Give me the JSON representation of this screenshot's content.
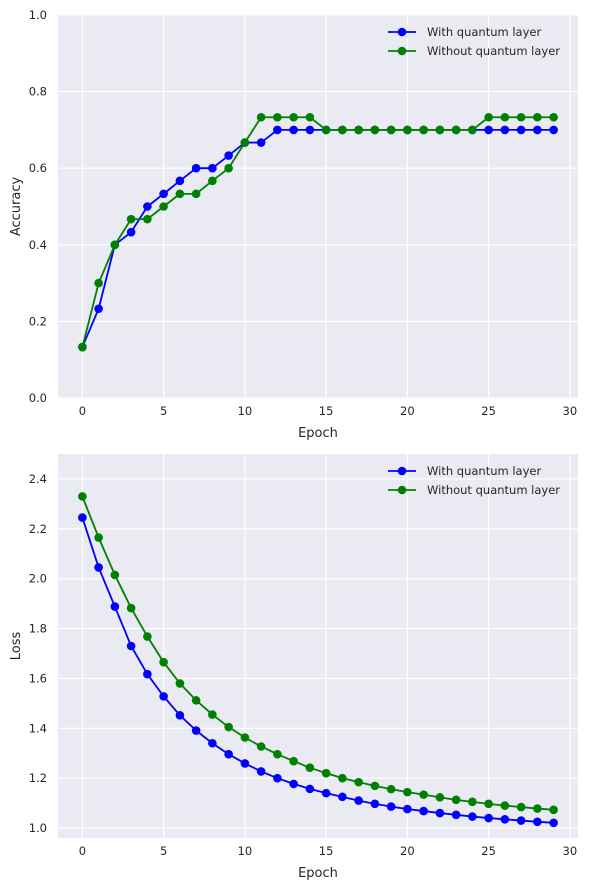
{
  "chart_data": [
    {
      "type": "line",
      "xlabel": "Epoch",
      "ylabel": "Accuracy",
      "xlim": [
        -1.5,
        30.5
      ],
      "ylim": [
        0,
        1.0
      ],
      "xticks": [
        0,
        5,
        10,
        15,
        20,
        25,
        30
      ],
      "yticks": [
        0.0,
        0.2,
        0.4,
        0.6,
        0.8,
        1.0
      ],
      "ytick_labels": [
        "0.0",
        "0.2",
        "0.4",
        "0.6",
        "0.8",
        "1.0"
      ],
      "grid": true,
      "legend_position": "top-right",
      "x": [
        0,
        1,
        2,
        3,
        4,
        5,
        6,
        7,
        8,
        9,
        10,
        11,
        12,
        13,
        14,
        15,
        16,
        17,
        18,
        19,
        20,
        21,
        22,
        23,
        24,
        25,
        26,
        27,
        28,
        29
      ],
      "series": [
        {
          "name": "With quantum layer",
          "color": "#0000ff",
          "values": [
            0.133,
            0.233,
            0.4,
            0.433,
            0.5,
            0.533,
            0.567,
            0.6,
            0.6,
            0.633,
            0.667,
            0.667,
            0.7,
            0.7,
            0.7,
            0.7,
            0.7,
            0.7,
            0.7,
            0.7,
            0.7,
            0.7,
            0.7,
            0.7,
            0.7,
            0.7,
            0.7,
            0.7,
            0.7,
            0.7
          ]
        },
        {
          "name": "Without quantum layer",
          "color": "#008000",
          "values": [
            0.133,
            0.3,
            0.4,
            0.467,
            0.467,
            0.5,
            0.533,
            0.533,
            0.567,
            0.6,
            0.667,
            0.733,
            0.733,
            0.733,
            0.733,
            0.7,
            0.7,
            0.7,
            0.7,
            0.7,
            0.7,
            0.7,
            0.7,
            0.7,
            0.7,
            0.733,
            0.733,
            0.733,
            0.733,
            0.733
          ]
        }
      ]
    },
    {
      "type": "line",
      "xlabel": "Epoch",
      "ylabel": "Loss",
      "xlim": [
        -1.5,
        30.5
      ],
      "ylim": [
        0.96,
        2.5
      ],
      "xticks": [
        0,
        5,
        10,
        15,
        20,
        25,
        30
      ],
      "yticks": [
        1.0,
        1.2,
        1.4,
        1.6,
        1.8,
        2.0,
        2.2,
        2.4
      ],
      "ytick_labels": [
        "1.0",
        "1.2",
        "1.4",
        "1.6",
        "1.8",
        "2.0",
        "2.2",
        "2.4"
      ],
      "grid": true,
      "legend_position": "top-right",
      "x": [
        0,
        1,
        2,
        3,
        4,
        5,
        6,
        7,
        8,
        9,
        10,
        11,
        12,
        13,
        14,
        15,
        16,
        17,
        18,
        19,
        20,
        21,
        22,
        23,
        24,
        25,
        26,
        27,
        28,
        29
      ],
      "series": [
        {
          "name": "With quantum layer",
          "color": "#0000ff",
          "values": [
            2.245,
            2.045,
            1.888,
            1.73,
            1.617,
            1.528,
            1.452,
            1.391,
            1.34,
            1.296,
            1.259,
            1.227,
            1.2,
            1.177,
            1.157,
            1.14,
            1.125,
            1.11,
            1.097,
            1.086,
            1.076,
            1.068,
            1.06,
            1.053,
            1.046,
            1.04,
            1.035,
            1.03,
            1.025,
            1.021
          ]
        },
        {
          "name": "Without quantum layer",
          "color": "#008000",
          "values": [
            2.33,
            2.165,
            2.015,
            1.882,
            1.768,
            1.665,
            1.58,
            1.512,
            1.455,
            1.405,
            1.363,
            1.327,
            1.296,
            1.268,
            1.242,
            1.22,
            1.2,
            1.184,
            1.169,
            1.156,
            1.144,
            1.134,
            1.123,
            1.113,
            1.105,
            1.097,
            1.09,
            1.084,
            1.078,
            1.073
          ]
        }
      ]
    }
  ]
}
